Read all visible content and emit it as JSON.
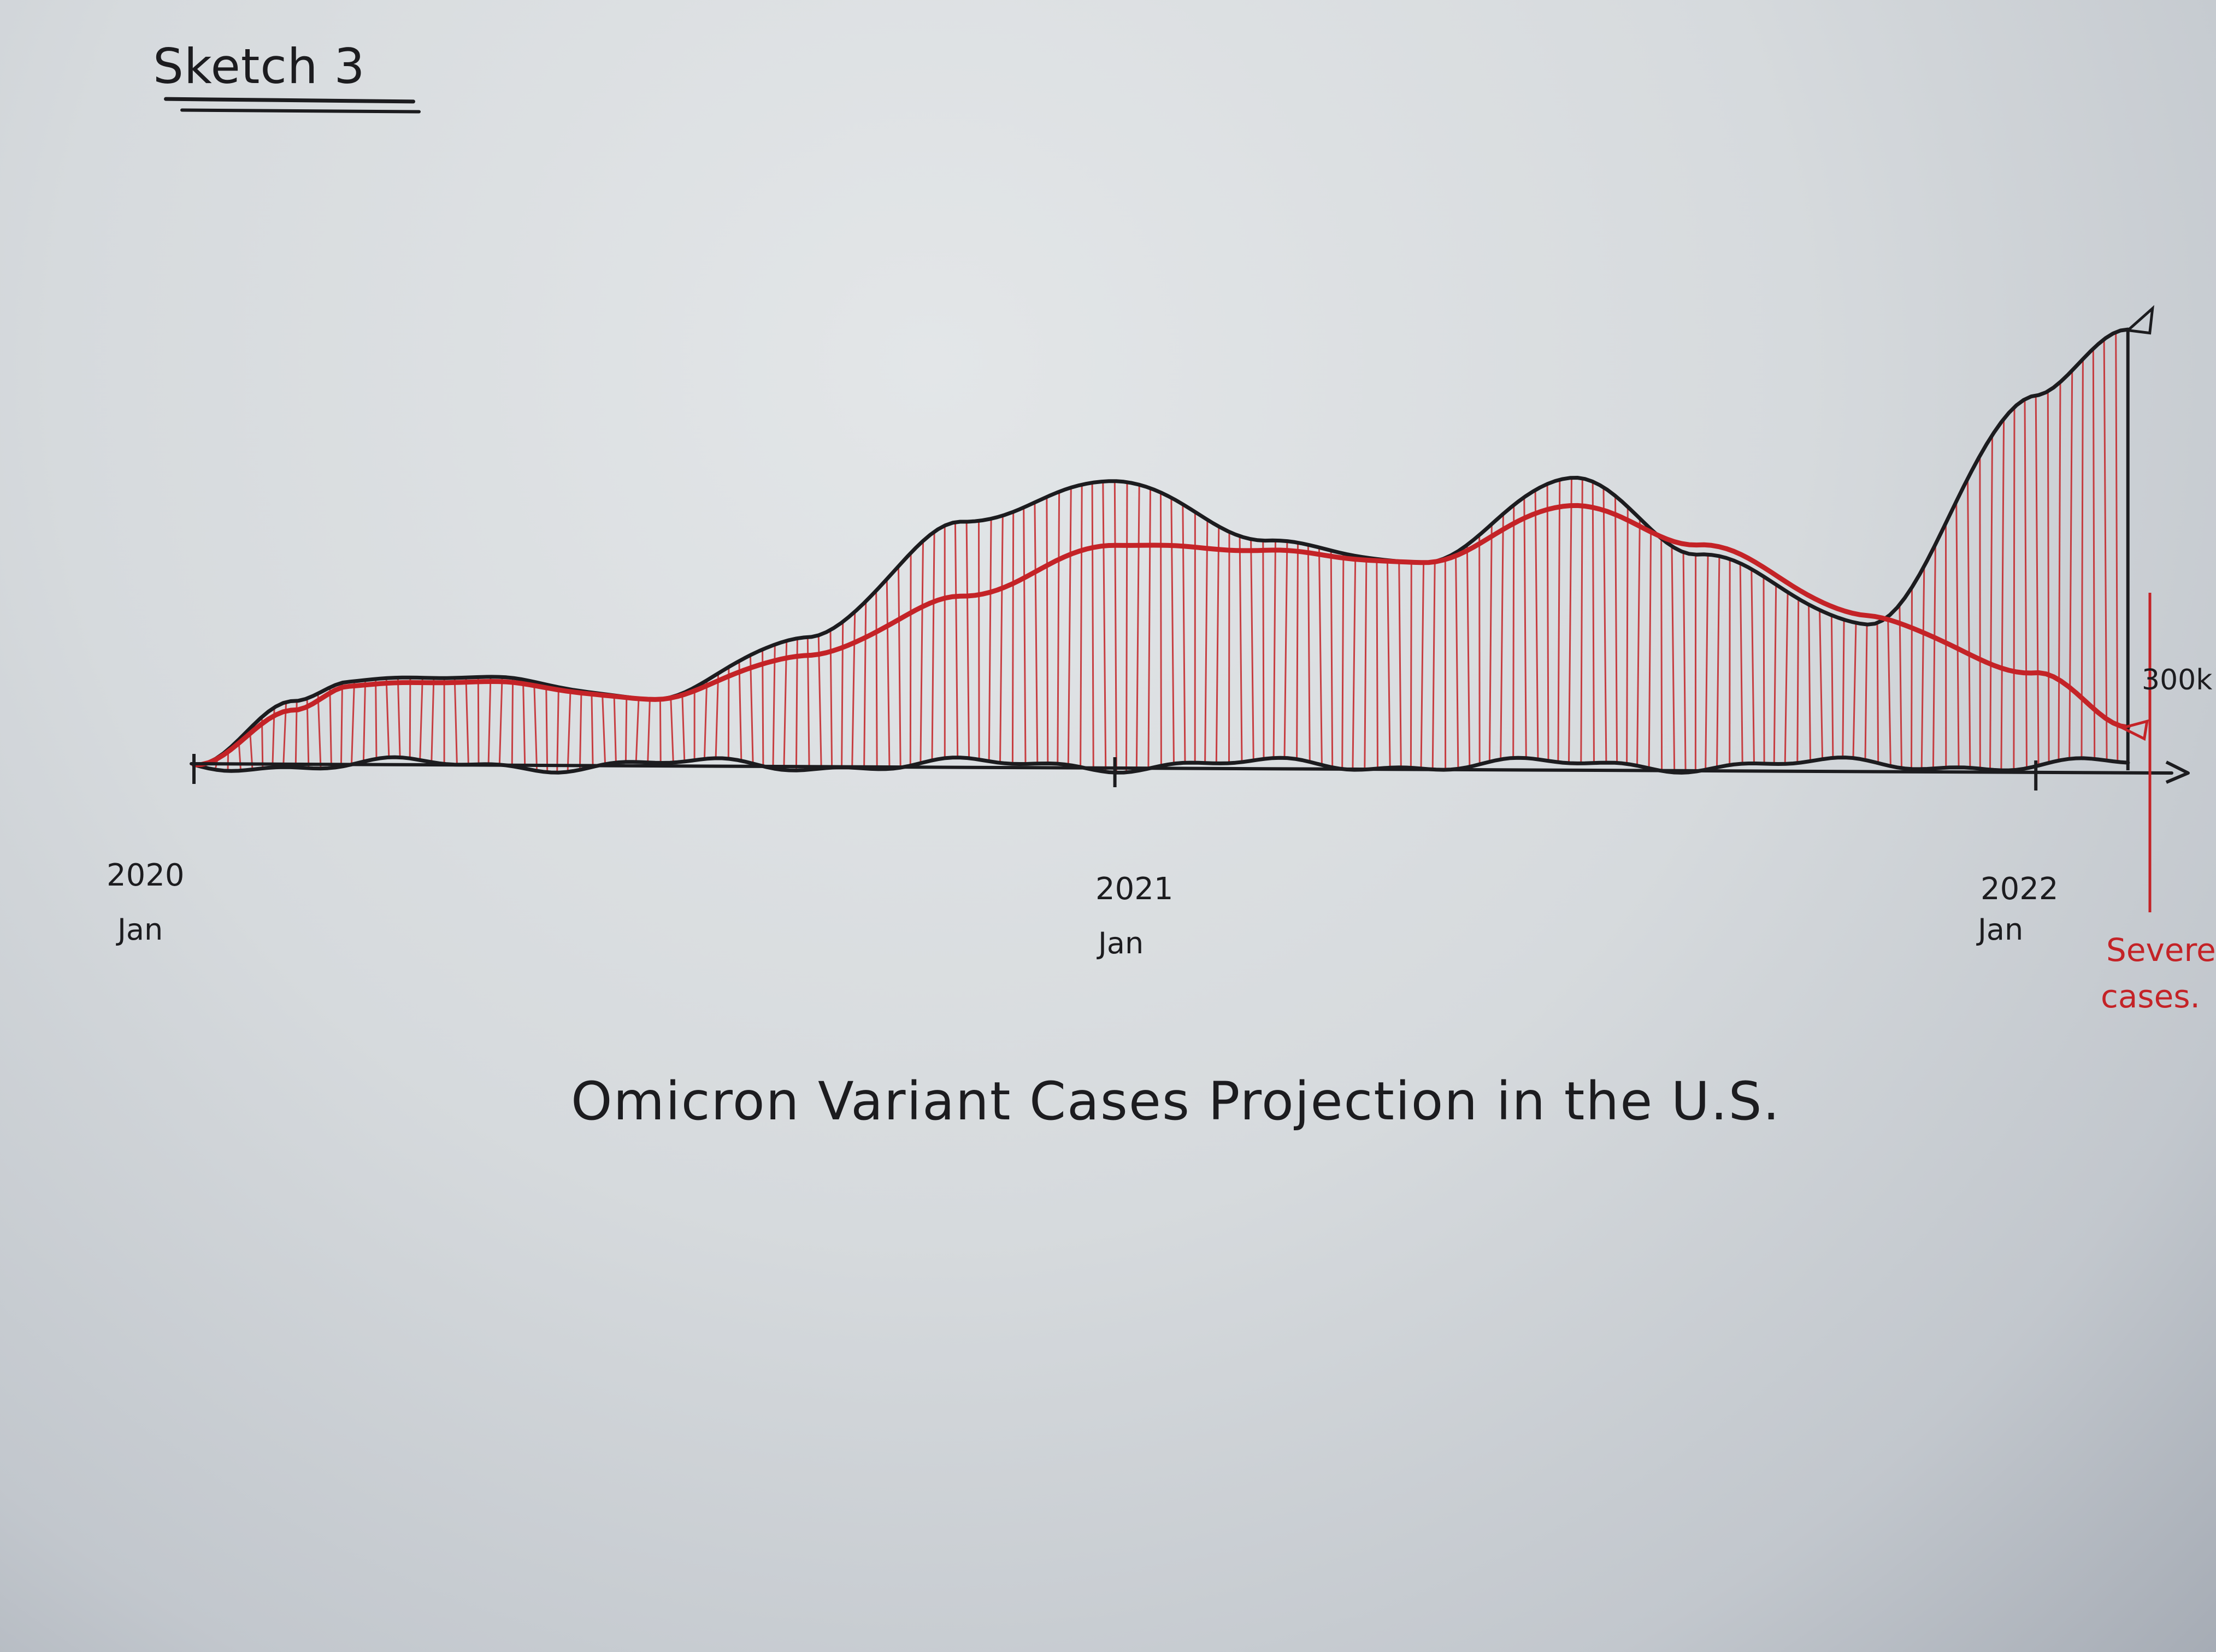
{
  "sketch": {
    "label": "Sketch 3"
  },
  "colors": {
    "ink": "#1c1c1f",
    "red": "#c42327"
  },
  "chart_data": {
    "type": "area",
    "title": "Omicron Variant Cases Projection in the U.S.",
    "xlabel": "",
    "ylabel": "",
    "x_ticks": [
      {
        "year": "2020",
        "month": "Jan",
        "value": 0
      },
      {
        "year": "2021",
        "month": "Jan",
        "value": 12
      },
      {
        "year": "2022",
        "month": "Jan",
        "value": 24
      }
    ],
    "x": [
      0,
      1.3,
      2,
      4,
      6,
      8,
      10,
      12,
      14,
      16,
      18,
      19.6,
      21.8,
      24,
      25.2
    ],
    "series": [
      {
        "values": [
          0,
          70,
          90,
          95,
          70,
          140,
          260,
          310,
          240,
          220,
          310,
          230,
          150,
          400,
          470
        ],
        "lower_values": [
          0,
          0,
          0,
          0,
          0,
          0,
          0,
          0,
          0,
          0,
          0,
          0,
          0,
          0,
          0
        ]
      },
      {
        "name": "Severe cases.",
        "values": [
          0,
          60,
          85,
          90,
          70,
          120,
          180,
          240,
          230,
          220,
          280,
          240,
          160,
          100,
          40
        ]
      }
    ],
    "annotations": [
      {
        "text": "300k",
        "x": 25.2,
        "y": 300
      },
      {
        "text": "Severe cases.",
        "x": 25.3
      }
    ],
    "xlim": [
      0,
      25.7
    ],
    "ylim": [
      -20,
      520
    ],
    "grid": false,
    "legend": "none"
  }
}
